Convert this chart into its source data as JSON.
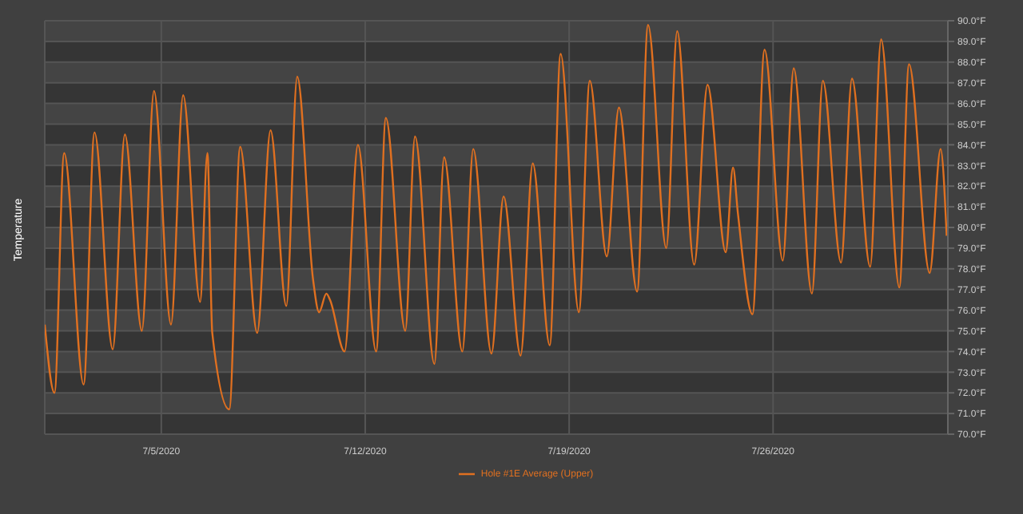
{
  "chart_data": {
    "type": "line",
    "ylabel": "Temperature",
    "xlim": [
      "2020-07-01",
      "2020-08-01"
    ],
    "xticks": [
      {
        "value": "2020-07-05",
        "label": "7/5/2020"
      },
      {
        "value": "2020-07-12",
        "label": "7/12/2020"
      },
      {
        "value": "2020-07-19",
        "label": "7/19/2020"
      },
      {
        "value": "2020-07-26",
        "label": "7/26/2020"
      }
    ],
    "ylim": [
      70,
      90
    ],
    "yticks": [
      {
        "value": 70,
        "label": "70.0°F"
      },
      {
        "value": 71,
        "label": "71.0°F"
      },
      {
        "value": 72,
        "label": "72.0°F"
      },
      {
        "value": 73,
        "label": "73.0°F"
      },
      {
        "value": 74,
        "label": "74.0°F"
      },
      {
        "value": 75,
        "label": "75.0°F"
      },
      {
        "value": 76,
        "label": "76.0°F"
      },
      {
        "value": 77,
        "label": "77.0°F"
      },
      {
        "value": 78,
        "label": "78.0°F"
      },
      {
        "value": 79,
        "label": "79.0°F"
      },
      {
        "value": 80,
        "label": "80.0°F"
      },
      {
        "value": 81,
        "label": "81.0°F"
      },
      {
        "value": 82,
        "label": "82.0°F"
      },
      {
        "value": 83,
        "label": "83.0°F"
      },
      {
        "value": 84,
        "label": "84.0°F"
      },
      {
        "value": 85,
        "label": "85.0°F"
      },
      {
        "value": 86,
        "label": "86.0°F"
      },
      {
        "value": 87,
        "label": "87.0°F"
      },
      {
        "value": 88,
        "label": "88.0°F"
      },
      {
        "value": 89,
        "label": "89.0°F"
      },
      {
        "value": 90,
        "label": "90.0°F"
      }
    ],
    "grid": true,
    "legend": "bottom",
    "marker": "none",
    "line_style": "solid",
    "series": [
      {
        "name": "Hole #1E Average (Upper)",
        "color": "#e07020",
        "x": [
          "2020-07-01T00:00",
          "2020-07-01T08:00",
          "2020-07-01T16:00",
          "2020-07-02T08:00",
          "2020-07-02T17:00",
          "2020-07-03T08:00",
          "2020-07-03T18:00",
          "2020-07-04T08:00",
          "2020-07-04T18:00",
          "2020-07-05T08:00",
          "2020-07-05T18:00",
          "2020-07-06T08:00",
          "2020-07-06T14:00",
          "2020-07-06T18:00",
          "2020-07-07T08:00",
          "2020-07-07T17:00",
          "2020-07-08T07:00",
          "2020-07-08T18:00",
          "2020-07-09T07:00",
          "2020-07-09T16:00",
          "2020-07-10T05:00",
          "2020-07-10T10:00",
          "2020-07-10T16:00",
          "2020-07-10T19:00",
          "2020-07-11T07:00",
          "2020-07-11T18:00",
          "2020-07-12T09:00",
          "2020-07-12T17:00",
          "2020-07-13T09:00",
          "2020-07-13T17:00",
          "2020-07-14T09:00",
          "2020-07-14T17:00",
          "2020-07-15T08:00",
          "2020-07-15T17:00",
          "2020-07-16T08:00",
          "2020-07-16T18:00",
          "2020-07-17T08:00",
          "2020-07-17T18:00",
          "2020-07-18T08:00",
          "2020-07-18T17:00",
          "2020-07-19T08:00",
          "2020-07-19T17:00",
          "2020-07-20T07:00",
          "2020-07-20T17:00",
          "2020-07-21T08:00",
          "2020-07-21T17:00",
          "2020-07-22T08:00",
          "2020-07-22T17:00",
          "2020-07-23T07:00",
          "2020-07-23T18:00",
          "2020-07-24T09:00",
          "2020-07-24T15:00",
          "2020-07-24T19:00",
          "2020-07-25T07:00",
          "2020-07-25T17:00",
          "2020-07-26T08:00",
          "2020-07-26T17:00",
          "2020-07-27T08:00",
          "2020-07-27T17:00",
          "2020-07-28T08:00",
          "2020-07-28T17:00",
          "2020-07-29T08:00",
          "2020-07-29T17:00",
          "2020-07-30T08:00",
          "2020-07-30T16:00",
          "2020-07-31T09:00",
          "2020-07-31T18:00",
          "2020-07-31T23:00"
        ],
        "values": [
          75.3,
          72.0,
          83.6,
          72.4,
          84.6,
          74.1,
          84.5,
          75.0,
          86.6,
          75.3,
          86.4,
          76.4,
          83.6,
          74.9,
          71.2,
          83.9,
          74.9,
          84.7,
          76.2,
          87.3,
          77.5,
          75.9,
          76.8,
          76.5,
          74.0,
          84.0,
          74.0,
          85.3,
          75.0,
          84.4,
          73.4,
          83.4,
          74.0,
          83.8,
          73.9,
          81.5,
          73.8,
          83.1,
          74.3,
          88.4,
          75.9,
          87.1,
          78.6,
          85.8,
          76.9,
          89.8,
          79.0,
          89.5,
          78.2,
          86.9,
          78.8,
          82.9,
          80.7,
          75.8,
          88.6,
          78.4,
          87.7,
          76.8,
          87.1,
          78.3,
          87.2,
          78.1,
          89.1,
          77.1,
          87.9,
          77.8,
          83.8,
          79.6
        ]
      }
    ]
  }
}
